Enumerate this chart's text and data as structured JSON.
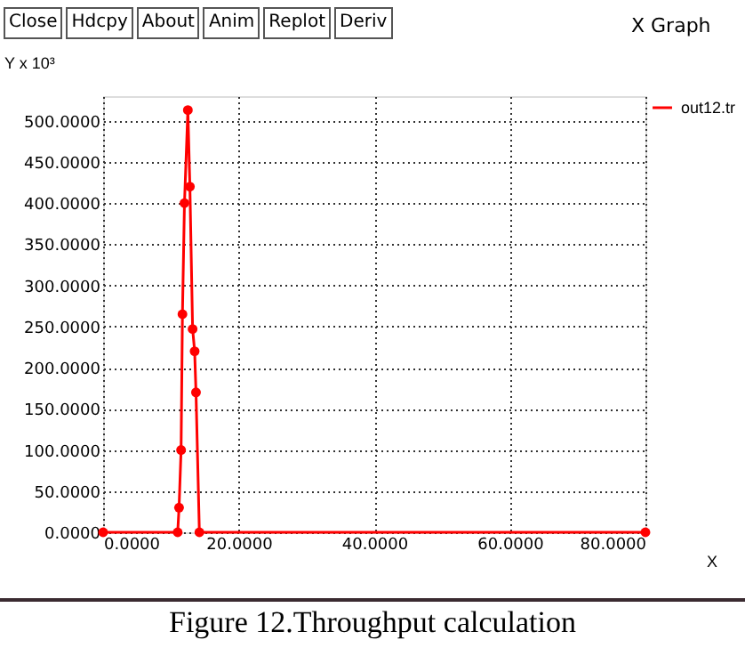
{
  "chart_data": {
    "type": "line",
    "title": "X Graph",
    "xlabel": "X",
    "ylabel": "Y x 10³",
    "annotations": [
      "Close",
      "Hdcpy",
      "About",
      "Anim",
      "Replot",
      "Deriv",
      "Figure 12.Throughput calculation"
    ],
    "x": [
      0,
      11.0,
      11.2,
      11.5,
      11.7,
      12.0,
      12.5,
      12.8,
      13.2,
      13.5,
      13.7,
      14.2,
      80
    ],
    "series": [
      {
        "name": "out12.tr",
        "color": "#ff0000",
        "values": [
          0,
          0,
          30,
          100,
          265,
          400,
          513,
          420,
          247,
          220,
          170,
          0,
          0
        ]
      }
    ],
    "xlim": [
      0,
      80
    ],
    "ylim": [
      0,
      530
    ],
    "xticks": [
      {
        "value": 0,
        "label": "0.0000"
      },
      {
        "value": 20,
        "label": "20.0000"
      },
      {
        "value": 40,
        "label": "40.0000"
      },
      {
        "value": 60,
        "label": "60.0000"
      },
      {
        "value": 80,
        "label": "80.0000"
      }
    ],
    "yticks": [
      {
        "value": 0,
        "label": "0.0000"
      },
      {
        "value": 50,
        "label": "50.0000"
      },
      {
        "value": 100,
        "label": "100.0000"
      },
      {
        "value": 150,
        "label": "150.0000"
      },
      {
        "value": 200,
        "label": "200.0000"
      },
      {
        "value": 250,
        "label": "250.0000"
      },
      {
        "value": 300,
        "label": "300.0000"
      },
      {
        "value": 350,
        "label": "350.0000"
      },
      {
        "value": 400,
        "label": "400.0000"
      },
      {
        "value": 450,
        "label": "450.0000"
      },
      {
        "value": 500,
        "label": "500.0000"
      }
    ],
    "grid": true,
    "legend": "top right",
    "marker": "circle",
    "line_style": "solid"
  }
}
